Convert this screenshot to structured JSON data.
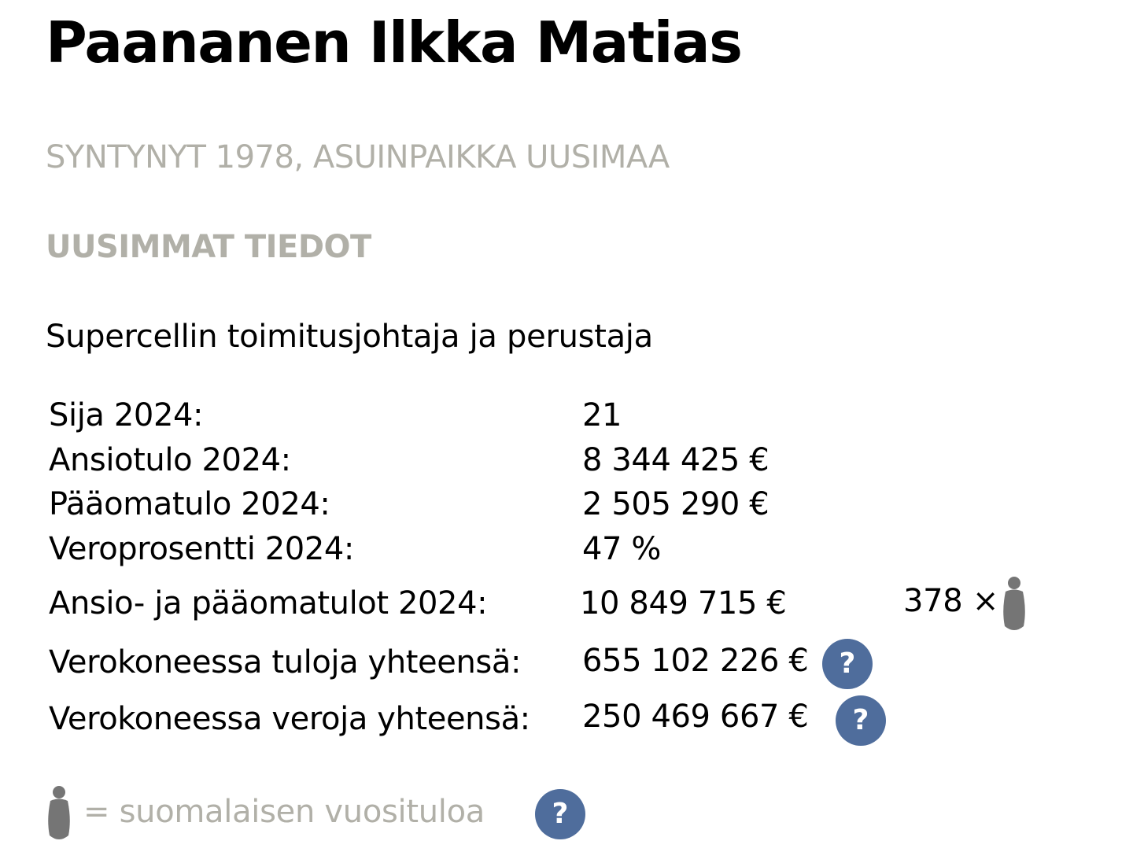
{
  "person": {
    "name": "Paananen Ilkka Matias",
    "subtitle": "SYNTYNYT 1978, ASUINPAIKKA UUSIMAA"
  },
  "section": {
    "heading": "UUSIMMAT TIEDOT",
    "role": "Supercellin toimitusjohtaja ja perustaja"
  },
  "stats": [
    {
      "label": "Sija 2024:",
      "value": "21"
    },
    {
      "label": "Ansiotulo 2024:",
      "value": "8 344 425 €"
    },
    {
      "label": "Pääomatulo 2024:",
      "value": "2 505 290 €"
    },
    {
      "label": "Veroprosentti 2024:",
      "value": "47 %"
    },
    {
      "label": "Ansio- ja pääomatulot 2024:",
      "value": "10 849 715 €",
      "multiplier": "378 ×"
    },
    {
      "label": "Verokoneessa tuloja yhteensä:",
      "value": "655 102 226 €"
    },
    {
      "label": "Verokoneessa veroja yhteensä:",
      "value": "250 469 667 €"
    }
  ],
  "help_label": "?",
  "legend": {
    "text": "= suomalaisen vuosituloa",
    "icon": "person-icon"
  },
  "colors": {
    "muted_text": "#b1b0a8",
    "help_button": "#4f6d9c",
    "person_icon": "#757575"
  }
}
